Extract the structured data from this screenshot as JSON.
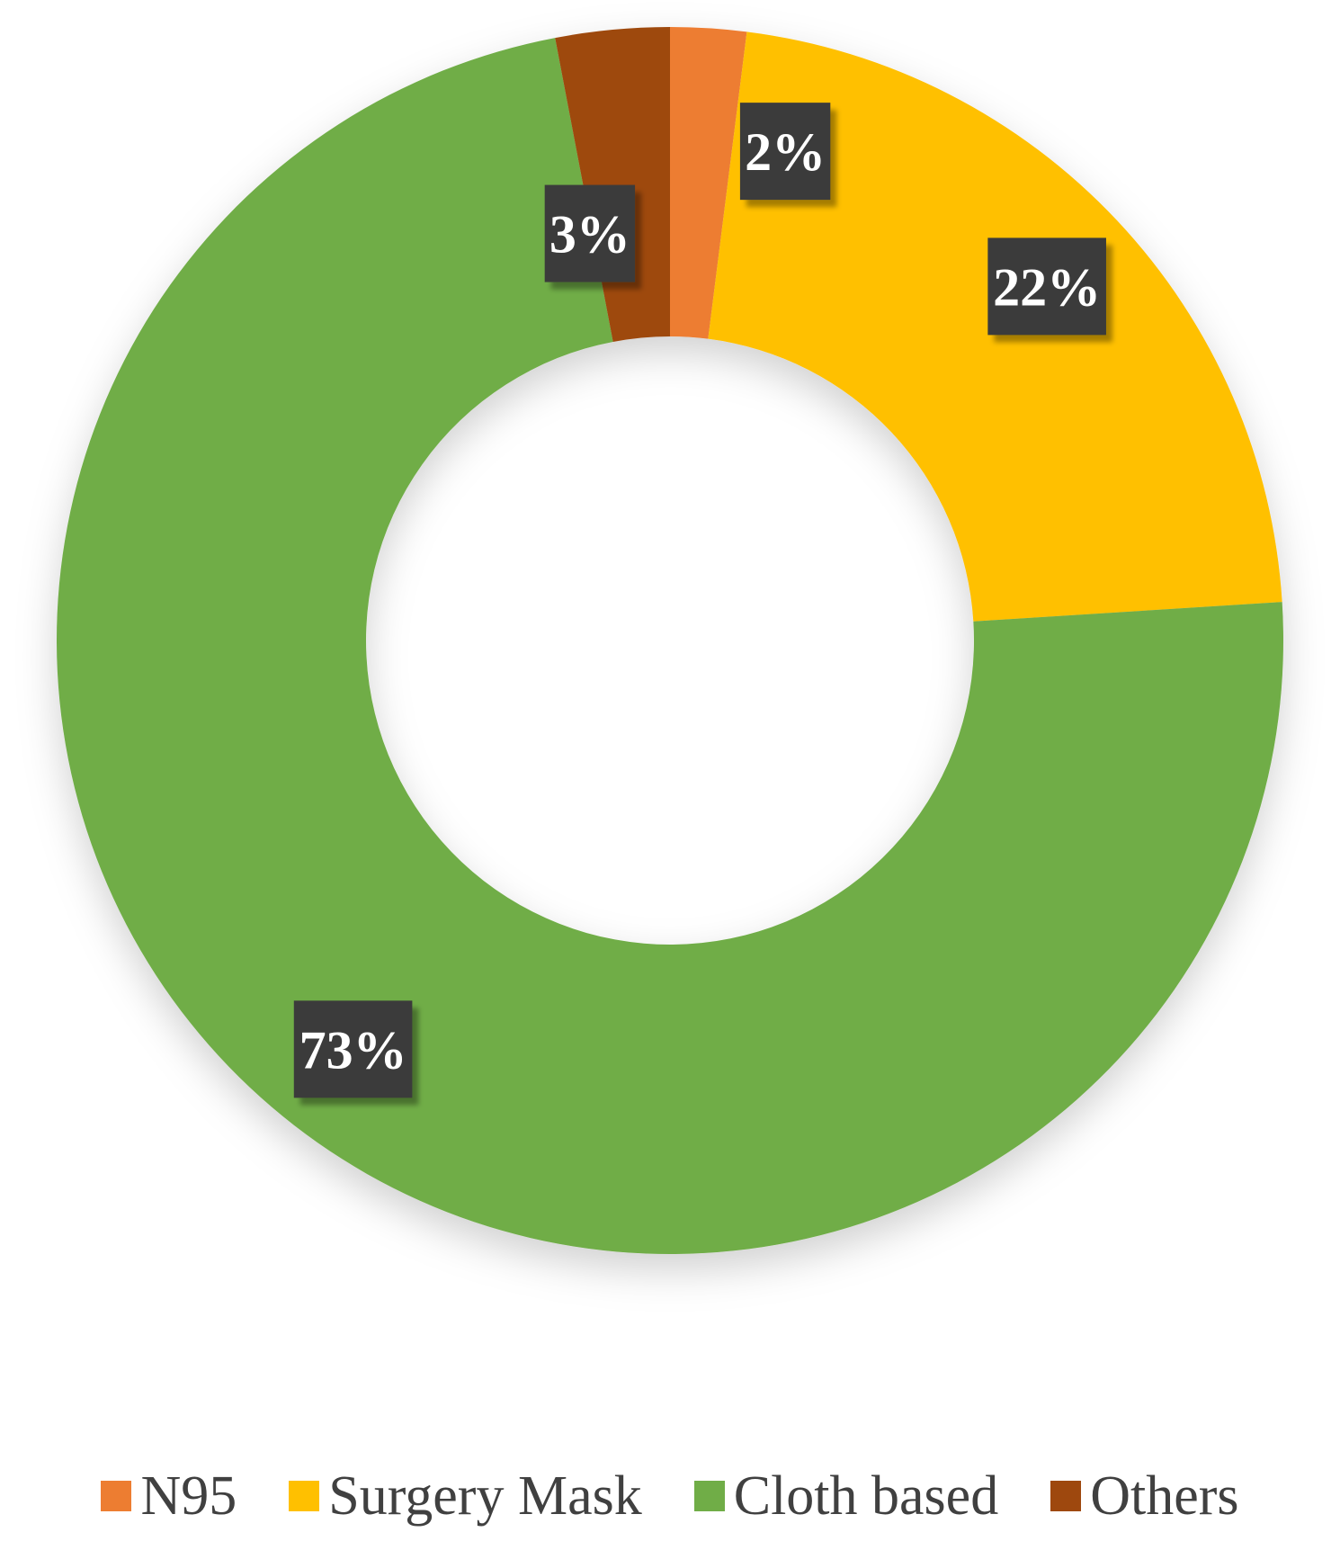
{
  "chart_data": {
    "type": "pie",
    "variant": "donut",
    "title": "",
    "series": [
      {
        "categories": [
          "N95",
          "Surgery Mask",
          "Cloth based",
          "Others"
        ],
        "values": [
          2,
          22,
          73,
          3
        ],
        "labels": [
          "2%",
          "22%",
          "73%",
          "3%"
        ],
        "colors": [
          "#ED7D31",
          "#FFC000",
          "#70AD47",
          "#9E480E"
        ]
      }
    ],
    "legend": {
      "position": "bottom",
      "entries": [
        "N95",
        "Surgery Mask",
        "Cloth based",
        "Others"
      ]
    },
    "data_label_style": {
      "background": "#3A3A3A",
      "text_color": "#FFFFFF"
    }
  }
}
